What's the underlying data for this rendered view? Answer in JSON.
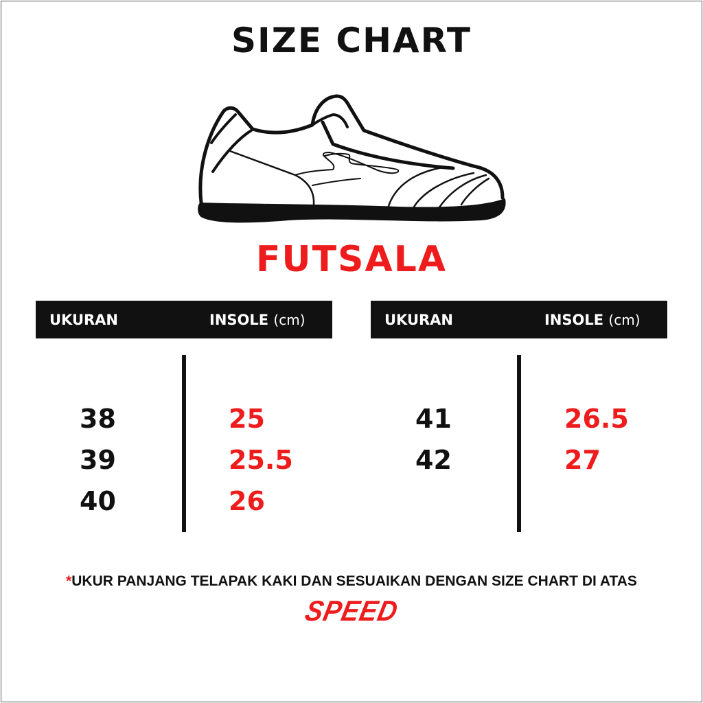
{
  "title": "SIZE CHART",
  "model": "FUTSALA",
  "shoe_icon": "sneaker-outline-icon",
  "tables": [
    {
      "headers": {
        "size": "UKURAN",
        "insole": "INSOLE",
        "unit": "(cm)"
      },
      "rows": [
        {
          "size": "38",
          "insole": "25"
        },
        {
          "size": "39",
          "insole": "25.5"
        },
        {
          "size": "40",
          "insole": "26"
        }
      ]
    },
    {
      "headers": {
        "size": "UKURAN",
        "insole": "INSOLE",
        "unit": "(cm)"
      },
      "rows": [
        {
          "size": "41",
          "insole": "26.5"
        },
        {
          "size": "42",
          "insole": "27"
        }
      ]
    }
  ],
  "note": {
    "asterisk": "*",
    "text": "UKUR PANJANG TELAPAK KAKI DAN SESUAIKAN DENGAN SIZE CHART DI ATAS"
  },
  "brand": "SPEED",
  "colors": {
    "accent": "#ee1c1c",
    "dark": "#111111"
  }
}
